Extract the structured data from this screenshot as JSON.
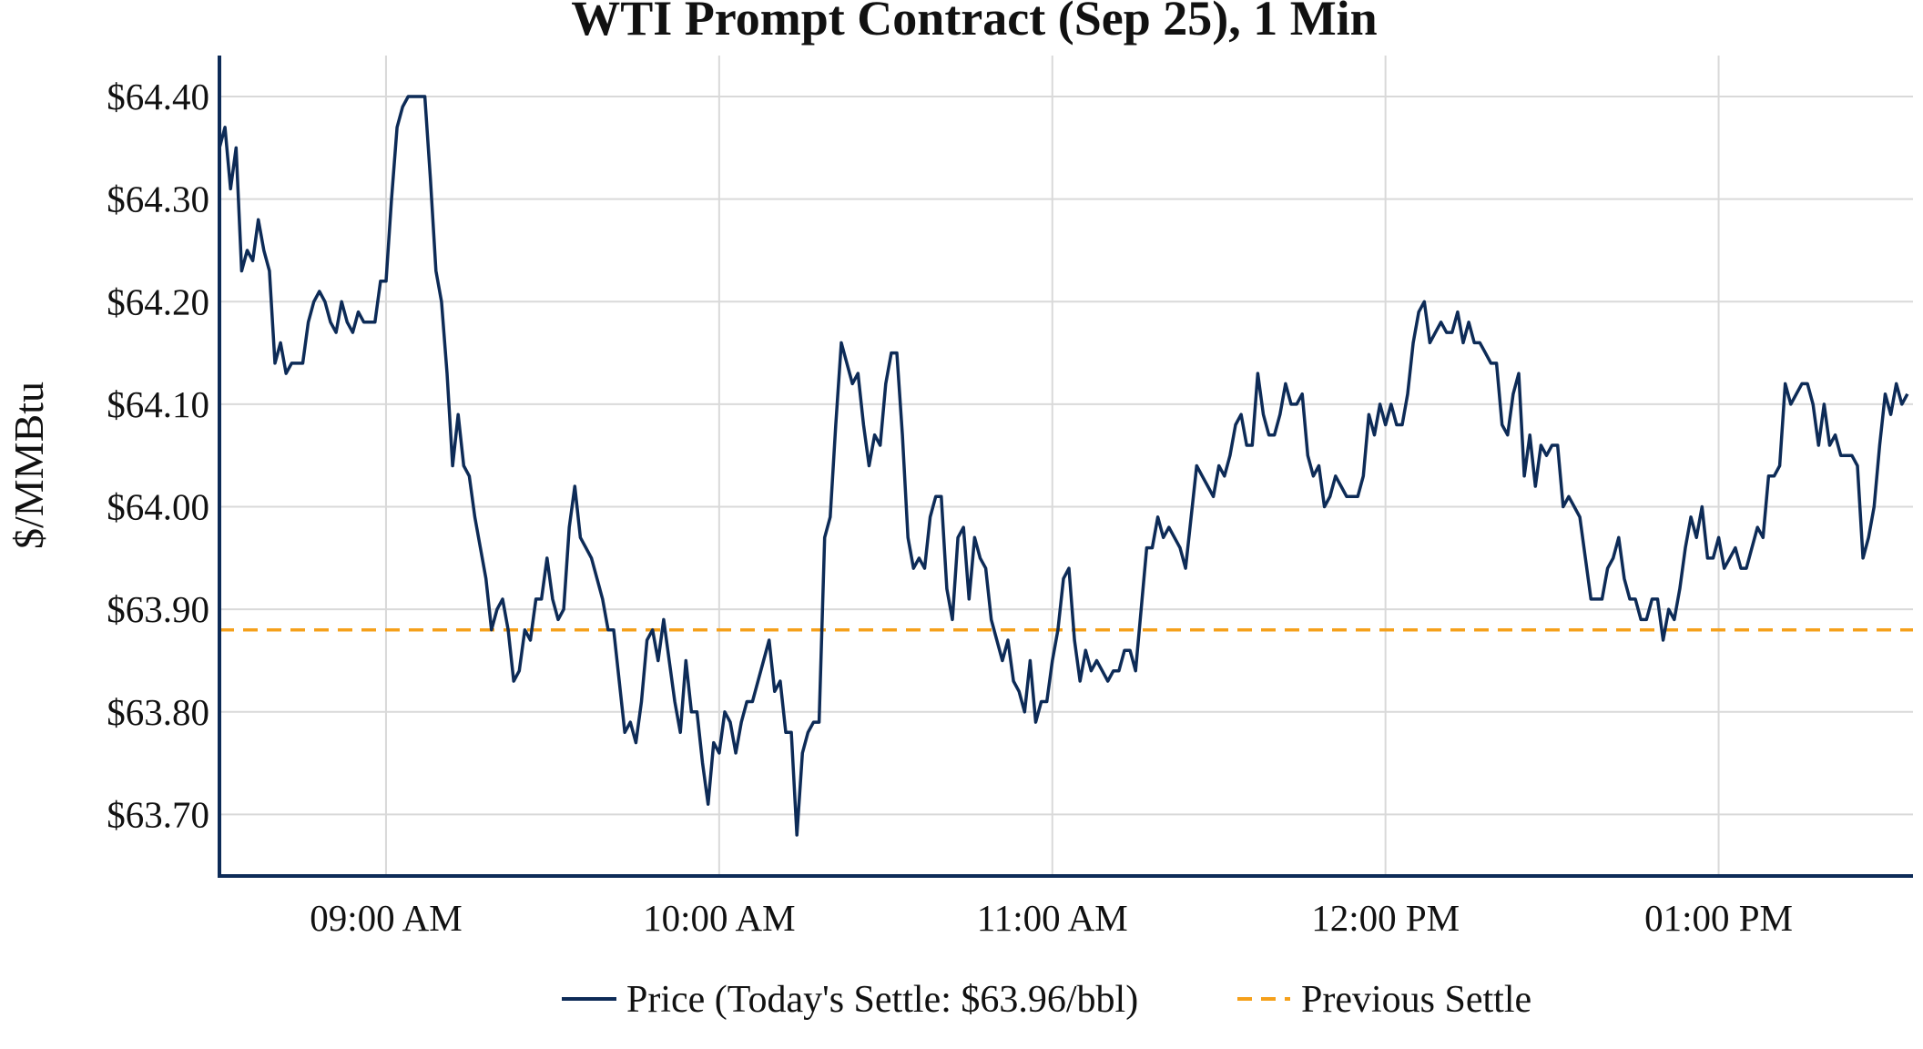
{
  "chart_data": {
    "type": "line",
    "title": "WTI Prompt Contract (Sep 25), 1 Min",
    "ylabel": "$/MMBtu",
    "xlabel": "",
    "xlim": [
      "08:30",
      "13:35"
    ],
    "ylim": [
      63.64,
      64.44
    ],
    "grid": true,
    "legend_placement": "bottom-center",
    "x_ticks": [
      {
        "time": "09:00",
        "label": "09:00 AM"
      },
      {
        "time": "10:00",
        "label": "10:00 AM"
      },
      {
        "time": "11:00",
        "label": "11:00 AM"
      },
      {
        "time": "12:00",
        "label": "12:00 PM"
      },
      {
        "time": "13:00",
        "label": "01:00 PM"
      }
    ],
    "y_ticks": [
      {
        "value": 63.7,
        "label": "$63.70"
      },
      {
        "value": 63.8,
        "label": "$63.80"
      },
      {
        "value": 63.9,
        "label": "$63.90"
      },
      {
        "value": 64.0,
        "label": "$64.00"
      },
      {
        "value": 64.1,
        "label": "$64.10"
      },
      {
        "value": 64.2,
        "label": "$64.20"
      },
      {
        "value": 64.3,
        "label": "$64.30"
      },
      {
        "value": 64.4,
        "label": "$64.40"
      }
    ],
    "series": [
      {
        "name": "Price (Today's Settle: $63.96/bbl)",
        "color": "#0d2b57",
        "style": "solid",
        "start_time": "08:30",
        "interval_minutes": 1,
        "values": [
          64.35,
          64.37,
          64.31,
          64.35,
          64.23,
          64.25,
          64.24,
          64.28,
          64.25,
          64.23,
          64.14,
          64.16,
          64.13,
          64.14,
          64.14,
          64.14,
          64.18,
          64.2,
          64.21,
          64.2,
          64.18,
          64.17,
          64.2,
          64.18,
          64.17,
          64.19,
          64.18,
          64.18,
          64.18,
          64.22,
          64.22,
          64.3,
          64.37,
          64.39,
          64.4,
          64.4,
          64.4,
          64.4,
          64.32,
          64.23,
          64.2,
          64.13,
          64.04,
          64.09,
          64.04,
          64.03,
          63.99,
          63.96,
          63.93,
          63.88,
          63.9,
          63.91,
          63.88,
          63.83,
          63.84,
          63.88,
          63.87,
          63.91,
          63.91,
          63.95,
          63.91,
          63.89,
          63.9,
          63.98,
          64.02,
          63.97,
          63.96,
          63.95,
          63.93,
          63.91,
          63.88,
          63.88,
          63.83,
          63.78,
          63.79,
          63.77,
          63.81,
          63.87,
          63.88,
          63.85,
          63.89,
          63.85,
          63.81,
          63.78,
          63.85,
          63.8,
          63.8,
          63.75,
          63.71,
          63.77,
          63.76,
          63.8,
          63.79,
          63.76,
          63.79,
          63.81,
          63.81,
          63.83,
          63.85,
          63.87,
          63.82,
          63.83,
          63.78,
          63.78,
          63.68,
          63.76,
          63.78,
          63.79,
          63.79,
          63.97,
          63.99,
          64.08,
          64.16,
          64.14,
          64.12,
          64.13,
          64.08,
          64.04,
          64.07,
          64.06,
          64.12,
          64.15,
          64.15,
          64.07,
          63.97,
          63.94,
          63.95,
          63.94,
          63.99,
          64.01,
          64.01,
          63.92,
          63.89,
          63.97,
          63.98,
          63.91,
          63.97,
          63.95,
          63.94,
          63.89,
          63.87,
          63.85,
          63.87,
          63.83,
          63.82,
          63.8,
          63.85,
          63.79,
          63.81,
          63.81,
          63.85,
          63.88,
          63.93,
          63.94,
          63.87,
          63.83,
          63.86,
          63.84,
          63.85,
          63.84,
          63.83,
          63.84,
          63.84,
          63.86,
          63.86,
          63.84,
          63.9,
          63.96,
          63.96,
          63.99,
          63.97,
          63.98,
          63.97,
          63.96,
          63.94,
          63.99,
          64.04,
          64.03,
          64.02,
          64.01,
          64.04,
          64.03,
          64.05,
          64.08,
          64.09,
          64.06,
          64.06,
          64.13,
          64.09,
          64.07,
          64.07,
          64.09,
          64.12,
          64.1,
          64.1,
          64.11,
          64.05,
          64.03,
          64.04,
          64.0,
          64.01,
          64.03,
          64.02,
          64.01,
          64.01,
          64.01,
          64.03,
          64.09,
          64.07,
          64.1,
          64.08,
          64.1,
          64.08,
          64.08,
          64.11,
          64.16,
          64.19,
          64.2,
          64.16,
          64.17,
          64.18,
          64.17,
          64.17,
          64.19,
          64.16,
          64.18,
          64.16,
          64.16,
          64.15,
          64.14,
          64.14,
          64.08,
          64.07,
          64.11,
          64.13,
          64.03,
          64.07,
          64.02,
          64.06,
          64.05,
          64.06,
          64.06,
          64.0,
          64.01,
          64.0,
          63.99,
          63.95,
          63.91,
          63.91,
          63.91,
          63.94,
          63.95,
          63.97,
          63.93,
          63.91,
          63.91,
          63.89,
          63.89,
          63.91,
          63.91,
          63.87,
          63.9,
          63.89,
          63.92,
          63.96,
          63.99,
          63.97,
          64.0,
          63.95,
          63.95,
          63.97,
          63.94,
          63.95,
          63.96,
          63.94,
          63.94,
          63.96,
          63.98,
          63.97,
          64.03,
          64.03,
          64.04,
          64.12,
          64.1,
          64.11,
          64.12,
          64.12,
          64.1,
          64.06,
          64.1,
          64.06,
          64.07,
          64.05,
          64.05,
          64.05,
          64.04,
          63.95,
          63.97,
          64.0,
          64.06,
          64.11,
          64.09,
          64.12,
          64.1,
          64.11
        ]
      },
      {
        "name": "Previous Settle",
        "color": "#f5a01a",
        "style": "dashed",
        "value": 63.88
      }
    ]
  }
}
